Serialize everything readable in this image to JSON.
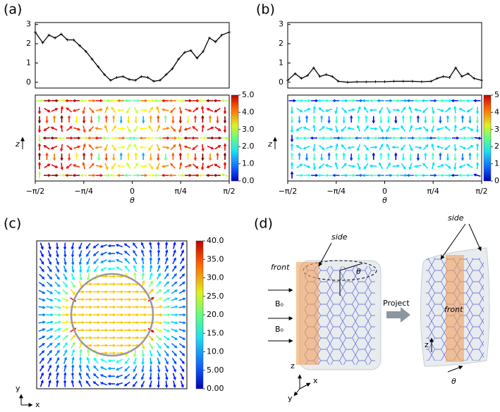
{
  "chart_data": [
    {
      "type": "line",
      "panel_label": "(a)",
      "xlabel": "θ",
      "field_ylabel": "z",
      "x": [
        -1.571,
        -1.45,
        -1.35,
        -1.25,
        -1.15,
        -1.05,
        -0.95,
        -0.85,
        -0.75,
        -0.65,
        -0.55,
        -0.45,
        -0.35,
        -0.25,
        -0.15,
        -0.05,
        0.05,
        0.15,
        0.25,
        0.35,
        0.45,
        0.55,
        0.65,
        0.75,
        0.85,
        0.95,
        1.05,
        1.15,
        1.25,
        1.35,
        1.45,
        1.571
      ],
      "series": [
        {
          "color": "#000000",
          "values": [
            2.6,
            2.05,
            2.45,
            2.3,
            2.5,
            2.2,
            2.2,
            1.9,
            1.6,
            1.2,
            0.8,
            0.4,
            0.1,
            0.25,
            0.3,
            0.15,
            0.1,
            0.3,
            0.25,
            0.05,
            0.1,
            0.4,
            0.7,
            1.2,
            1.55,
            1.65,
            1.25,
            1.6,
            2.3,
            2.1,
            2.45,
            2.6
          ]
        }
      ],
      "xlim": [
        -1.571,
        1.571
      ],
      "ylim": [
        -0.3,
        3.1
      ],
      "yticks": [
        0,
        1,
        2,
        3
      ],
      "xticks": [
        {
          "value": -1.571,
          "label": "−π/2"
        },
        {
          "value": -0.785,
          "label": "−π/4"
        },
        0,
        {
          "value": 0.785,
          "label": "π/4"
        },
        {
          "value": 1.571,
          "label": "π/2"
        }
      ],
      "colorbar": {
        "lim": [
          0,
          5
        ],
        "ticks": [
          {
            "value": 0,
            "label": "0.0"
          },
          {
            "value": 1,
            "label": "1.0"
          },
          {
            "value": 2,
            "label": "2.0"
          },
          {
            "value": 3,
            "label": "3.0"
          },
          {
            "value": 4,
            "label": "4.0"
          },
          {
            "value": 5,
            "label": "5.0"
          }
        ]
      }
    },
    {
      "type": "line",
      "panel_label": "(b)",
      "xlabel": "θ",
      "field_ylabel": "z",
      "x": [
        -1.571,
        -1.45,
        -1.35,
        -1.25,
        -1.15,
        -1.05,
        -0.95,
        -0.85,
        -0.75,
        -0.6,
        -0.45,
        -0.3,
        -0.15,
        0,
        0.15,
        0.3,
        0.45,
        0.6,
        0.75,
        0.85,
        0.95,
        1.05,
        1.15,
        1.25,
        1.35,
        1.45,
        1.571
      ],
      "series": [
        {
          "color": "#000000",
          "values": [
            0.1,
            0.45,
            0.2,
            0.35,
            0.75,
            0.3,
            0.4,
            0.3,
            0.05,
            0.0,
            0.02,
            0.02,
            0.03,
            0.03,
            0.05,
            0.05,
            0.05,
            0.03,
            0.05,
            0.2,
            0.3,
            0.25,
            0.75,
            0.3,
            0.45,
            0.2,
            0.1
          ]
        }
      ],
      "xlim": [
        -1.571,
        1.571
      ],
      "ylim": [
        -0.3,
        3.1
      ],
      "yticks": [
        0,
        1,
        2,
        3
      ],
      "xticks": [
        {
          "value": -1.571,
          "label": "−π/2"
        },
        {
          "value": -0.785,
          "label": "−π/4"
        },
        0,
        {
          "value": 0.785,
          "label": "π/4"
        },
        {
          "value": 1.571,
          "label": "π/2"
        }
      ],
      "colorbar": {
        "lim": [
          0,
          5
        ],
        "ticks": [
          {
            "value": 0,
            "label": "0.0"
          },
          {
            "value": 1,
            "label": "1.0"
          },
          {
            "value": 2,
            "label": "2.0"
          },
          {
            "value": 3,
            "label": "3.0"
          },
          {
            "value": 4,
            "label": "4.0"
          },
          {
            "value": 5,
            "label": "5.0"
          }
        ]
      }
    },
    {
      "type": "vector_field",
      "panel_label": "(c)",
      "xlabel": "x",
      "ylabel": "y",
      "colorbar": {
        "lim": [
          0,
          40
        ],
        "ticks": [
          {
            "value": 0,
            "label": "0.00"
          },
          {
            "value": 5,
            "label": "5.00"
          },
          {
            "value": 10,
            "label": "10.0"
          },
          {
            "value": 15,
            "label": "15.0"
          },
          {
            "value": 20,
            "label": "20.0"
          },
          {
            "value": 25,
            "label": "25.0"
          },
          {
            "value": 30,
            "label": "30.0"
          },
          {
            "value": 35,
            "label": "35.0"
          },
          {
            "value": 40,
            "label": "40.0"
          }
        ]
      }
    }
  ],
  "diagram": {
    "panel_label": "(d)",
    "side": "side",
    "front": "front",
    "angle": "θ",
    "field": [
      "B₀",
      "B₀"
    ],
    "action": "Project",
    "axes": [
      "z",
      "y",
      "x"
    ],
    "projected": {
      "side": "side",
      "front": "front",
      "z": "z",
      "theta": "θ"
    }
  }
}
